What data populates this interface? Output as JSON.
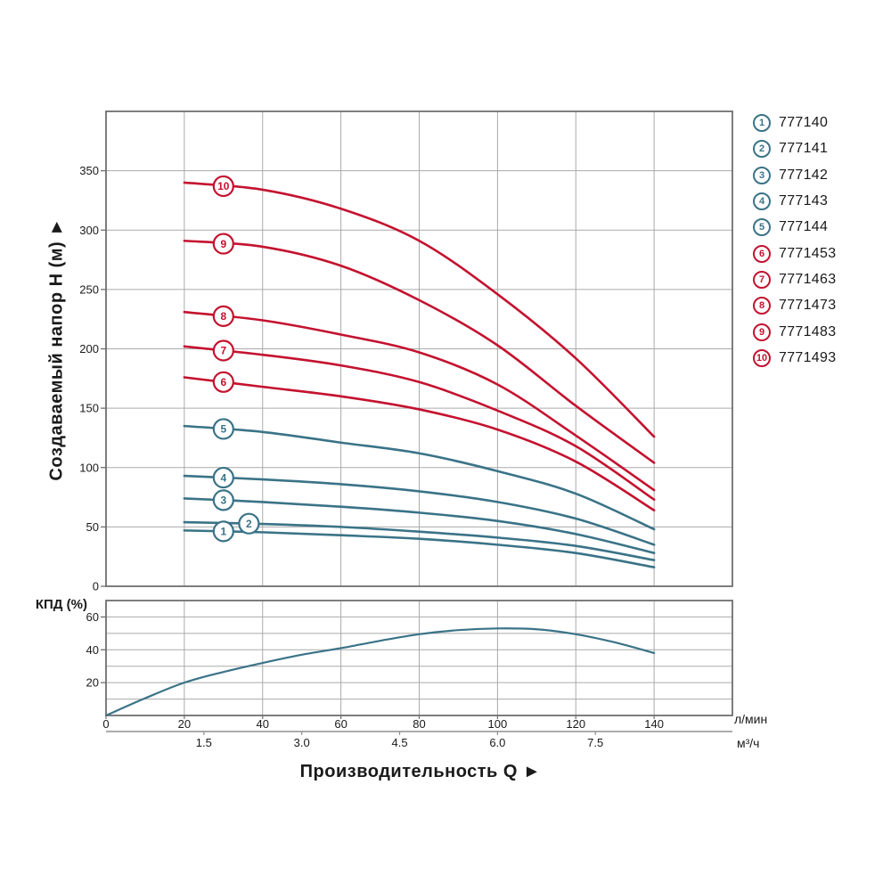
{
  "colors": {
    "teal": "#3a7387",
    "red": "#c4122f",
    "grid": "#aaaaaa",
    "border": "#6f6f6f",
    "axis2": "#909090",
    "text": "#1a1a1a",
    "background": "#ffffff"
  },
  "legend": {
    "items": [
      {
        "num": "1",
        "model": "777140",
        "color": "teal"
      },
      {
        "num": "2",
        "model": "777141",
        "color": "teal"
      },
      {
        "num": "3",
        "model": "777142",
        "color": "teal"
      },
      {
        "num": "4",
        "model": "777143",
        "color": "teal"
      },
      {
        "num": "5",
        "model": "777144",
        "color": "teal"
      },
      {
        "num": "6",
        "model": "7771453",
        "color": "red"
      },
      {
        "num": "7",
        "model": "7771463",
        "color": "red"
      },
      {
        "num": "8",
        "model": "7771473",
        "color": "red"
      },
      {
        "num": "9",
        "model": "7771483",
        "color": "red"
      },
      {
        "num": "10",
        "model": "7771493",
        "color": "red"
      }
    ]
  },
  "chart_data": [
    {
      "type": "line",
      "ylabel": "Создаваемый напор H (м) ►",
      "xlabel": "Производительность Q ►",
      "unit_lmin": "л/мин",
      "unit_m3h": "м³/ч",
      "ylim": [
        0,
        400
      ],
      "yticks": [
        0,
        50,
        100,
        150,
        200,
        250,
        300,
        350
      ],
      "xlim": [
        0,
        160
      ],
      "xticks_lmin": [
        0,
        20,
        40,
        60,
        80,
        100,
        120,
        140
      ],
      "xticks_m3h": [
        "1.5",
        "3.0",
        "4.5",
        "6.0",
        "7.5"
      ],
      "lmin_per_m3h": 16.6667,
      "grid": true,
      "legend_position": "right",
      "series": [
        {
          "num": "1",
          "name": "777140",
          "color": "teal",
          "label_q": 30,
          "points": [
            [
              20,
              47
            ],
            [
              40,
              45.5
            ],
            [
              60,
              43
            ],
            [
              80,
              40
            ],
            [
              100,
              35
            ],
            [
              120,
              28
            ],
            [
              140,
              16
            ]
          ]
        },
        {
          "num": "2",
          "name": "777141",
          "color": "teal",
          "label_q": 36.5,
          "points": [
            [
              20,
              54
            ],
            [
              40,
              52.5
            ],
            [
              60,
              50
            ],
            [
              80,
              46
            ],
            [
              100,
              41
            ],
            [
              120,
              34
            ],
            [
              140,
              22
            ]
          ]
        },
        {
          "num": "3",
          "name": "777142",
          "color": "teal",
          "label_q": 30,
          "points": [
            [
              20,
              74
            ],
            [
              40,
              71
            ],
            [
              60,
              67
            ],
            [
              80,
              62
            ],
            [
              100,
              55
            ],
            [
              120,
              44
            ],
            [
              140,
              28
            ]
          ]
        },
        {
          "num": "4",
          "name": "777143",
          "color": "teal",
          "label_q": 30,
          "points": [
            [
              20,
              93
            ],
            [
              40,
              90
            ],
            [
              60,
              86
            ],
            [
              80,
              80
            ],
            [
              100,
              71
            ],
            [
              120,
              57
            ],
            [
              140,
              35
            ]
          ]
        },
        {
          "num": "5",
          "name": "777144",
          "color": "teal",
          "label_q": 30,
          "points": [
            [
              20,
              135
            ],
            [
              40,
              130
            ],
            [
              60,
              121
            ],
            [
              80,
              112
            ],
            [
              100,
              97
            ],
            [
              120,
              78
            ],
            [
              140,
              48
            ]
          ]
        },
        {
          "num": "6",
          "name": "7771453",
          "color": "red",
          "label_q": 30,
          "points": [
            [
              20,
              176
            ],
            [
              40,
              168
            ],
            [
              60,
              160
            ],
            [
              80,
              149
            ],
            [
              100,
              132
            ],
            [
              120,
              105
            ],
            [
              140,
              64
            ]
          ]
        },
        {
          "num": "7",
          "name": "7771463",
          "color": "red",
          "label_q": 30,
          "points": [
            [
              20,
              202
            ],
            [
              40,
              195
            ],
            [
              60,
              186
            ],
            [
              80,
              172
            ],
            [
              100,
              148
            ],
            [
              120,
              118
            ],
            [
              140,
              73
            ]
          ]
        },
        {
          "num": "8",
          "name": "7771473",
          "color": "red",
          "label_q": 30,
          "points": [
            [
              20,
              231
            ],
            [
              40,
              224
            ],
            [
              60,
              212
            ],
            [
              80,
              197
            ],
            [
              100,
              170
            ],
            [
              120,
              127
            ],
            [
              140,
              81
            ]
          ]
        },
        {
          "num": "9",
          "name": "7771483",
          "color": "red",
          "label_q": 30,
          "points": [
            [
              20,
              291
            ],
            [
              40,
              286
            ],
            [
              60,
              270
            ],
            [
              80,
              241
            ],
            [
              100,
              203
            ],
            [
              120,
              152
            ],
            [
              140,
              104
            ]
          ]
        },
        {
          "num": "10",
          "name": "7771493",
          "color": "red",
          "label_q": 30,
          "points": [
            [
              20,
              340
            ],
            [
              40,
              334
            ],
            [
              60,
              318
            ],
            [
              80,
              291
            ],
            [
              100,
              246
            ],
            [
              120,
              192
            ],
            [
              140,
              126
            ]
          ]
        }
      ]
    },
    {
      "type": "line",
      "ylabel": "КПД (%)",
      "ylim": [
        0,
        70
      ],
      "yticks_labeled": [
        20,
        40,
        60
      ],
      "ygrid_step": 10,
      "series": [
        {
          "name": "КПД",
          "color": "teal",
          "points": [
            [
              0,
              0
            ],
            [
              10,
              10.5
            ],
            [
              20,
              20
            ],
            [
              30,
              26.5
            ],
            [
              40,
              32
            ],
            [
              50,
              37
            ],
            [
              60,
              41
            ],
            [
              70,
              45.5
            ],
            [
              80,
              49.5
            ],
            [
              90,
              52
            ],
            [
              100,
              53
            ],
            [
              110,
              52.5
            ],
            [
              120,
              49.5
            ],
            [
              130,
              44.5
            ],
            [
              140,
              38
            ]
          ]
        }
      ]
    }
  ]
}
